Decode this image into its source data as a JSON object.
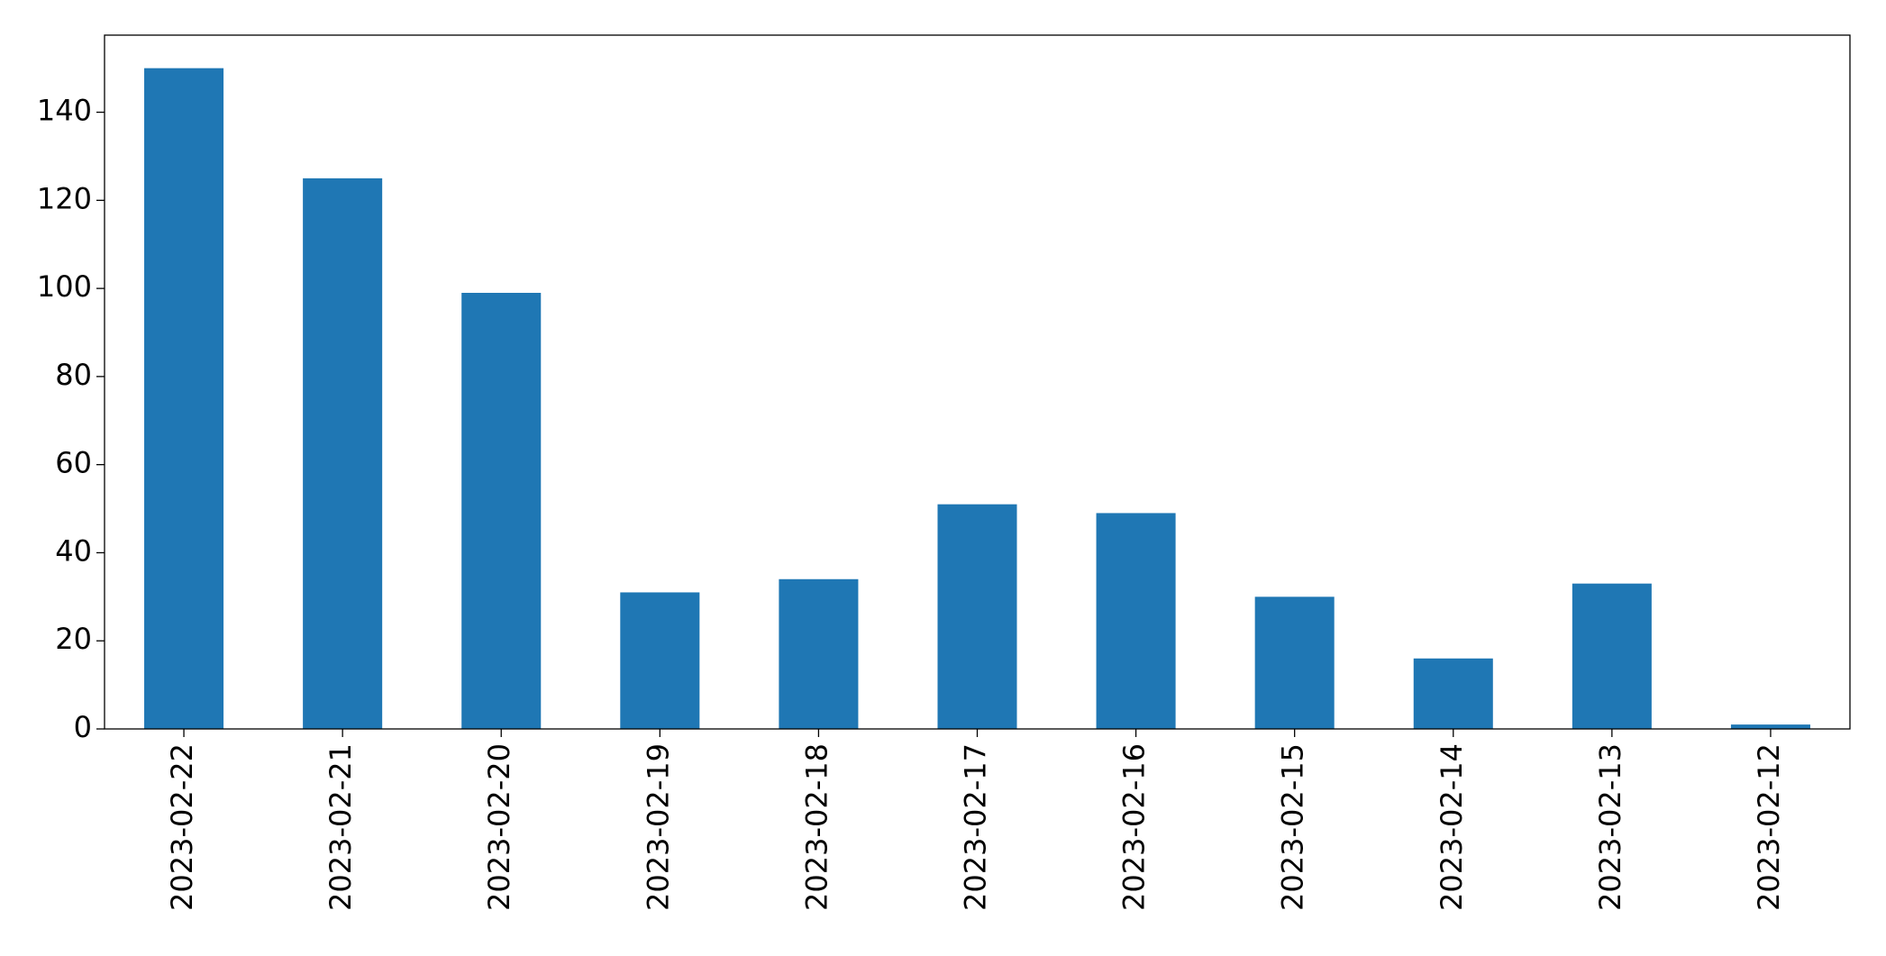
{
  "chart_data": {
    "type": "bar",
    "categories": [
      "2023-02-22",
      "2023-02-21",
      "2023-02-20",
      "2023-02-19",
      "2023-02-18",
      "2023-02-17",
      "2023-02-16",
      "2023-02-15",
      "2023-02-14",
      "2023-02-13",
      "2023-02-12"
    ],
    "values": [
      150,
      125,
      99,
      31,
      34,
      51,
      49,
      30,
      16,
      33,
      1
    ],
    "color": "#1f77b4",
    "ylim": [
      0,
      157.5
    ],
    "yticks": [
      0,
      20,
      40,
      60,
      80,
      100,
      120,
      140
    ],
    "grid": false
  }
}
